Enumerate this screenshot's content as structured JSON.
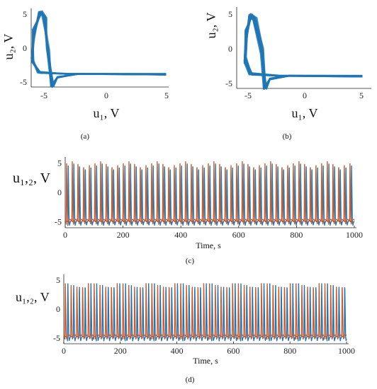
{
  "chart_data": [
    {
      "panel": "a",
      "type": "line",
      "caption": "(a)",
      "xlabel": "u₁, V",
      "ylabel": "u₂, V",
      "xlim": [
        -5.5,
        5
      ],
      "ylim": [
        -5.5,
        5.5
      ],
      "x_ticks": [
        "-5",
        "0",
        "5"
      ],
      "y_ticks": [
        "5",
        "0",
        "-5"
      ],
      "color": "#1f77b4",
      "cycle": {
        "rest_x": 4.8,
        "rest_y": -3.6,
        "knee_x": -3.7,
        "min_y": -5.5,
        "peak_x": -4.8,
        "peak_y": 5.2,
        "left_x": -5.5
      }
    },
    {
      "panel": "b",
      "type": "line",
      "caption": "(b)",
      "xlabel": "u₁, V",
      "ylabel": "u₂, V",
      "xlim": [
        -6,
        5
      ],
      "ylim": [
        -5.5,
        5.5
      ],
      "x_ticks": [
        "-5",
        "0",
        "5"
      ],
      "y_ticks": [
        "5",
        "0",
        "-5"
      ],
      "color": "#1f77b4",
      "cycle": {
        "rest_x": 4.6,
        "rest_y": -3.7,
        "knee_x": -3.4,
        "min_y": -5.6,
        "peak_x": -4.8,
        "peak_y": 4.8,
        "left_x": -5.4
      }
    },
    {
      "panel": "c",
      "type": "line",
      "caption": "(c)",
      "xlabel": "Time, s",
      "ylabel": "u₁,₂, V",
      "xlim": [
        0,
        1000
      ],
      "ylim": [
        -6,
        6
      ],
      "x_ticks": [
        "0",
        "200",
        "400",
        "600",
        "800",
        "1000"
      ],
      "x_tick_values": [
        0,
        200,
        400,
        600,
        800,
        1000
      ],
      "y_ticks": [
        "5",
        "0",
        "-5"
      ],
      "y_tick_values": [
        5,
        0,
        -5
      ],
      "period": 19.6,
      "series": [
        {
          "color": "#1f77b4",
          "phase": 9.0,
          "peak": 4.9,
          "trough": -5.6
        },
        {
          "color": "#d4592a",
          "phase": 3.5,
          "peak": 5.3,
          "trough": -5.4
        }
      ]
    },
    {
      "panel": "d",
      "type": "line",
      "caption": "(d)",
      "xlabel": "Time, s",
      "ylabel": "u₁,₂, V",
      "xlim": [
        0,
        1000
      ],
      "ylim": [
        -6,
        6
      ],
      "x_ticks": [
        "0",
        "200",
        "400",
        "600",
        "800",
        "1000"
      ],
      "x_tick_values": [
        0,
        200,
        400,
        600,
        800,
        1000
      ],
      "y_ticks": [
        "5",
        "0",
        "-5"
      ],
      "y_tick_values": [
        5,
        0,
        -5
      ],
      "period": 20.4,
      "series": [
        {
          "color": "#1f77b4",
          "phase": 13.0,
          "peak": 4.6,
          "trough": -5.5
        },
        {
          "color": "#d4592a",
          "phase": 4.0,
          "peak": 4.6,
          "trough": -5.2
        }
      ]
    }
  ]
}
